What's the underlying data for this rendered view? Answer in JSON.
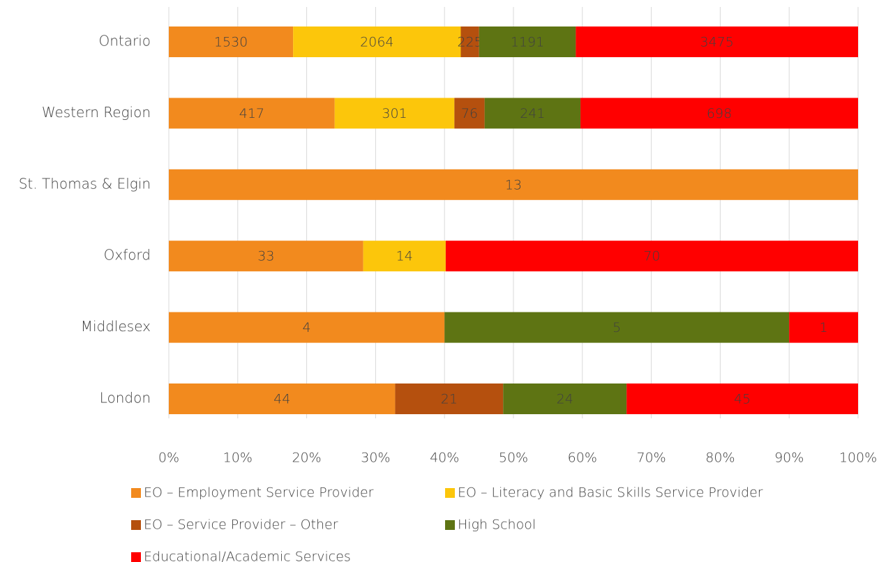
{
  "chart_data": {
    "type": "bar",
    "orientation": "horizontal",
    "stacking": "percent",
    "categories": [
      "Ontario",
      "Western Region",
      "St. Thomas & Elgin",
      "Oxford",
      "Middlesex",
      "London"
    ],
    "series": [
      {
        "name": "EO – Employment Service Provider",
        "color": "#f28a1e",
        "values": [
          1530,
          417,
          13,
          33,
          4,
          44
        ]
      },
      {
        "name": "EO – Literacy and Basic Skills Service Provider",
        "color": "#fcc60b",
        "values": [
          2064,
          301,
          null,
          14,
          null,
          null
        ]
      },
      {
        "name": "EO – Service Provider – Other",
        "color": "#b5500e",
        "values": [
          225,
          76,
          null,
          null,
          null,
          21
        ]
      },
      {
        "name": "High School",
        "color": "#5e7413",
        "values": [
          1191,
          241,
          null,
          null,
          5,
          24
        ]
      },
      {
        "name": "Educational/Academic Services",
        "color": "#ff0000",
        "values": [
          3475,
          698,
          null,
          70,
          1,
          45
        ]
      }
    ],
    "xlim": [
      0,
      100
    ],
    "xticks": [
      {
        "value": 0,
        "label": "0%"
      },
      {
        "value": 10,
        "label": "10%"
      },
      {
        "value": 20,
        "label": "20%"
      },
      {
        "value": 30,
        "label": "30%"
      },
      {
        "value": 40,
        "label": "40%"
      },
      {
        "value": 50,
        "label": "50%"
      },
      {
        "value": 60,
        "label": "60%"
      },
      {
        "value": 70,
        "label": "70%"
      },
      {
        "value": 80,
        "label": "80%"
      },
      {
        "value": 90,
        "label": "90%"
      },
      {
        "value": 100,
        "label": "100%"
      }
    ],
    "grid": true,
    "legend": "bottom"
  }
}
